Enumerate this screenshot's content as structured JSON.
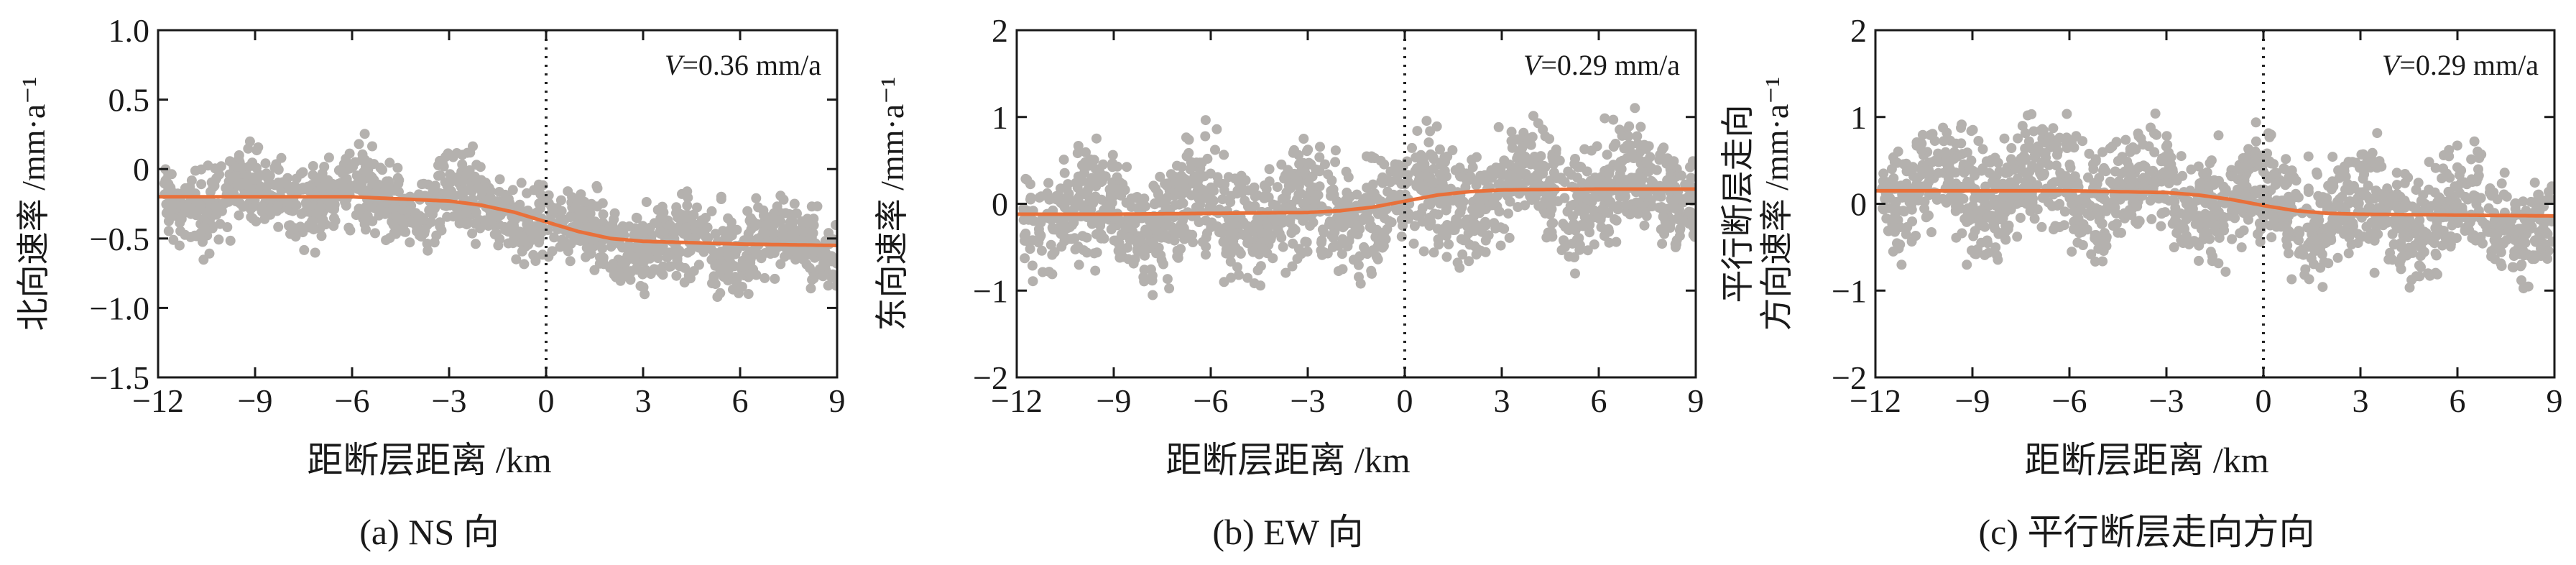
{
  "chart_data": [
    {
      "type": "scatter",
      "caption": "(a) NS 向",
      "xlabel": "距断层距离 /km",
      "ylabel_lines": [
        "北向速率 /mm·a⁻¹"
      ],
      "annotation_var": "V",
      "annotation_value": "=0.36 mm/a",
      "xlim": [
        -12,
        9
      ],
      "ylim": [
        -1.5,
        1.0
      ],
      "xticks": [
        -12,
        -9,
        -6,
        -3,
        0,
        3,
        6,
        9
      ],
      "xtick_labels": [
        "−12",
        "−9",
        "−6",
        "−3",
        "0",
        "3",
        "6",
        "9"
      ],
      "yticks": [
        1.0,
        0.5,
        0,
        -0.5,
        -1.0,
        -1.5
      ],
      "ytick_labels": [
        "1.0",
        "0.5",
        "0",
        "−0.5",
        "−1.0",
        "−1.5"
      ],
      "fault_x": 0,
      "series": [
        {
          "style": "gray points",
          "color": "#b4b1ae",
          "x_range": [
            -11.8,
            9
          ],
          "point_count": 1400,
          "scatter_spread": 0.28,
          "trend": "fitted curve"
        },
        {
          "style": "fitted arctan profile",
          "color": "#e8703a",
          "x": [
            -12,
            -9,
            -6,
            -3,
            -2,
            -1,
            0,
            1,
            2,
            3,
            6,
            9
          ],
          "y": [
            -0.2,
            -0.2,
            -0.2,
            -0.23,
            -0.26,
            -0.31,
            -0.38,
            -0.45,
            -0.5,
            -0.52,
            -0.54,
            -0.55
          ]
        }
      ]
    },
    {
      "type": "scatter",
      "caption": "(b) EW 向",
      "xlabel": "距断层距离 /km",
      "ylabel_lines": [
        "东向速率 /mm·a⁻¹"
      ],
      "annotation_var": "V",
      "annotation_value": "=0.29 mm/a",
      "xlim": [
        -12,
        9
      ],
      "ylim": [
        -2,
        2
      ],
      "xticks": [
        -12,
        -9,
        -6,
        -3,
        0,
        3,
        6,
        9
      ],
      "xtick_labels": [
        "−12",
        "−9",
        "−6",
        "−3",
        "0",
        "3",
        "6",
        "9"
      ],
      "yticks": [
        2,
        1,
        0,
        -1,
        -2
      ],
      "ytick_labels": [
        "2",
        "1",
        "0",
        "−1",
        "−2"
      ],
      "fault_x": 0,
      "series": [
        {
          "style": "gray points",
          "color": "#b4b1ae",
          "x_range": [
            -11.8,
            9
          ],
          "point_count": 1500,
          "scatter_spread": 0.62,
          "trend": "fitted curve"
        },
        {
          "style": "fitted arctan profile",
          "color": "#e8703a",
          "x": [
            -12,
            -9,
            -6,
            -3,
            -2,
            -1,
            0,
            1,
            2,
            3,
            6,
            9
          ],
          "y": [
            -0.12,
            -0.12,
            -0.11,
            -0.1,
            -0.08,
            -0.04,
            0.03,
            0.1,
            0.14,
            0.16,
            0.17,
            0.17
          ]
        }
      ]
    },
    {
      "type": "scatter",
      "caption": "(c) 平行断层走向方向",
      "xlabel": "距断层距离 /km",
      "ylabel_lines": [
        "平行断层走向",
        "方向速率 /mm·a⁻¹"
      ],
      "annotation_var": "V",
      "annotation_value": "=0.29 mm/a",
      "xlim": [
        -12,
        9
      ],
      "ylim": [
        -2,
        2
      ],
      "xticks": [
        -12,
        -9,
        -6,
        -3,
        0,
        3,
        6,
        9
      ],
      "xtick_labels": [
        "−12",
        "−9",
        "−6",
        "−3",
        "0",
        "3",
        "6",
        "9"
      ],
      "yticks": [
        2,
        1,
        0,
        -1,
        -2
      ],
      "ytick_labels": [
        "2",
        "1",
        "0",
        "−1",
        "−2"
      ],
      "fault_x": 0,
      "series": [
        {
          "style": "gray points",
          "color": "#b4b1ae",
          "x_range": [
            -11.8,
            9
          ],
          "point_count": 1500,
          "scatter_spread": 0.62,
          "trend": "fitted curve"
        },
        {
          "style": "fitted arctan profile",
          "color": "#e8703a",
          "x": [
            -12,
            -9,
            -6,
            -3,
            -2,
            -1,
            0,
            1,
            2,
            3,
            6,
            9
          ],
          "y": [
            0.15,
            0.15,
            0.15,
            0.13,
            0.1,
            0.05,
            -0.02,
            -0.08,
            -0.11,
            -0.12,
            -0.13,
            -0.14
          ]
        }
      ]
    }
  ]
}
